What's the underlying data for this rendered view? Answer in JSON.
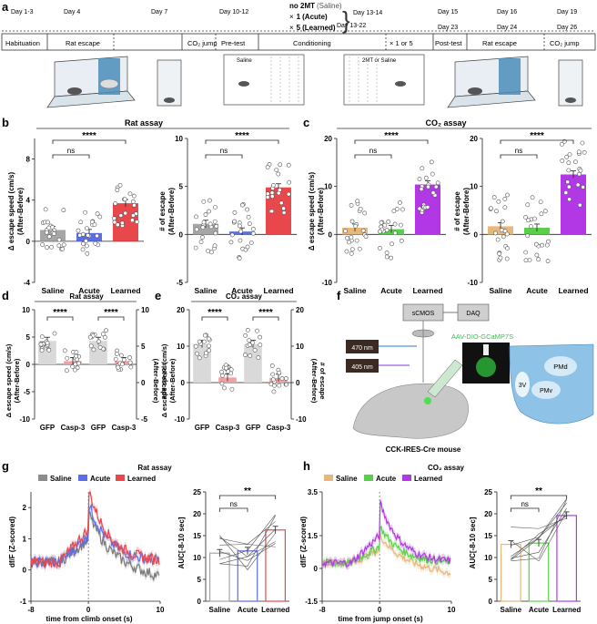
{
  "panel_letters": {
    "a": "a",
    "b": "b",
    "c": "c",
    "d": "d",
    "e": "e",
    "f": "f",
    "g": "g",
    "h": "h"
  },
  "timeline": {
    "days": [
      "Day 1-3",
      "Day 4",
      "Day 7",
      "Day 10-12",
      "Day 13-14",
      "Day 13-22",
      "Day 15",
      "Day 16",
      "Day 19",
      "Day 23",
      "Day 24",
      "Day 26"
    ],
    "groups": {
      "g0": "no 2MT",
      "g0s": "(Saline)",
      "g1x": "×",
      "g1": "1",
      "g1s": "(Acute)",
      "g2x": "×",
      "g2": "5",
      "g2s": "(Learned)"
    },
    "stages": [
      "Habituation",
      "Rat escape",
      "CO₂ jump",
      "Pre-test",
      "Conditioning",
      "× 1 or 5",
      "Post-test",
      "Rat escape",
      "CO₂ jump"
    ],
    "box_labels": {
      "left": "Saline",
      "right": "2MT or Saline"
    }
  },
  "common": {
    "assay_rat": "Rat assay",
    "assay_co2": "CO₂ assay",
    "ns": "ns",
    "sig4": "****",
    "sig2": "**",
    "xcat": [
      "Saline",
      "Acute",
      "Learned"
    ],
    "xcat_gc": [
      "GFP",
      "Casp-3",
      "GFP",
      "Casp-3"
    ],
    "ylab_speed": "Δ escape speed (cm/s)",
    "ylab_speed2": "(After-Before)",
    "ylab_num": "# of escape",
    "ylab_num2": "(After-Before)"
  },
  "panel_f": {
    "scmos": "sCMOS",
    "daq": "DAQ",
    "l470": "470 nm",
    "l405": "405 nm",
    "virus": "AAV-DIO-GCaMP7S",
    "mouse": "CCK-IRES-Cre mouse",
    "pmd": "PMd",
    "v3": "3V",
    "pmv": "PMv"
  },
  "panel_g": {
    "legend": [
      "Saline",
      "Acute",
      "Learned"
    ],
    "ylabel": "df/F (Z-scored)",
    "xlabel": "time from climb onset (s)",
    "auc_label": "AUC[-8-10 sec]"
  },
  "panel_h": {
    "legend": [
      "Saline",
      "Acute",
      "Learned"
    ],
    "ylabel": "df/F (Z-scored)",
    "xlabel": "time from jump onset (s)",
    "auc_label": "AUC[-8-10 sec]"
  },
  "colors": {
    "saline": "#a6a6a6",
    "acute": "#5b6ee8",
    "learned": "#e8474c",
    "saline_c": "#e8b77a",
    "acute_c": "#5ad04a",
    "learned_c": "#b238e6",
    "gfp": "#d9d9d9",
    "casp": "#f2a0a0"
  },
  "chart_data": [
    {
      "id": "b1",
      "type": "bar",
      "categories": [
        "Saline",
        "Acute",
        "Learned"
      ],
      "values": [
        1.1,
        0.8,
        3.7
      ],
      "ylim": [
        -4,
        10
      ],
      "yticks": [
        -4,
        0,
        4,
        8
      ],
      "ylabel": "Δ escape speed (cm/s) (After-Before)",
      "title": "Rat assay"
    },
    {
      "id": "b2",
      "type": "bar",
      "categories": [
        "Saline",
        "Acute",
        "Learned"
      ],
      "values": [
        1.1,
        0.3,
        4.9
      ],
      "ylim": [
        -5,
        10
      ],
      "yticks": [
        -5,
        0,
        5,
        10
      ],
      "ylabel": "# of escape (After-Before)"
    },
    {
      "id": "c1",
      "type": "bar",
      "categories": [
        "Saline",
        "Acute",
        "Learned"
      ],
      "values": [
        1.4,
        1.1,
        10.4
      ],
      "ylim": [
        -10,
        20
      ],
      "yticks": [
        -10,
        0,
        10,
        20
      ],
      "ylabel": "Δ escape speed (cm/s) (After-Before)",
      "title": "CO₂ assay"
    },
    {
      "id": "c2",
      "type": "bar",
      "categories": [
        "Saline",
        "Acute",
        "Learned"
      ],
      "values": [
        1.7,
        1.4,
        12.5
      ],
      "ylim": [
        -10,
        20
      ],
      "yticks": [
        -10,
        0,
        10,
        20
      ],
      "ylabel": "# of escape (After-Before)"
    },
    {
      "id": "d",
      "type": "bar",
      "categories": [
        "GFP",
        "Casp-3",
        "GFP",
        "Casp-3"
      ],
      "values": [
        4.3,
        0.6,
        4.3,
        0.6
      ],
      "ylim": [
        -10,
        10
      ],
      "yticks": [
        -10,
        -5,
        0,
        5,
        10
      ],
      "y2ticks": [
        -5,
        0,
        5,
        10
      ],
      "ylabel": "Δ escape speed (cm/s) (After-Before)",
      "y2label": "# of escape (After-Before)",
      "title": "Rat assay"
    },
    {
      "id": "e",
      "type": "bar",
      "categories": [
        "GFP",
        "Casp-3",
        "GFP",
        "Casp-3"
      ],
      "values": [
        10.6,
        1.4,
        10.6,
        1.3
      ],
      "ylim": [
        -10,
        20
      ],
      "yticks": [
        -10,
        0,
        10,
        20
      ],
      "y2ticks": [
        -10,
        0,
        10,
        20
      ],
      "ylabel": "Δ escape speed (cm/s) (After-Before)",
      "y2label": "# of escape (After-Before)",
      "title": "CO₂ assay"
    },
    {
      "id": "g1",
      "type": "line",
      "x_range": [
        -8,
        10
      ],
      "xticks": [
        -8,
        0,
        10
      ],
      "ylim": [
        -1,
        2.5
      ],
      "yticks": [
        -1,
        0,
        1,
        2
      ],
      "series": [
        {
          "name": "Saline",
          "peak": 1.6
        },
        {
          "name": "Acute",
          "peak": 1.9
        },
        {
          "name": "Learned",
          "peak": 2.35
        }
      ]
    },
    {
      "id": "g2",
      "type": "bar",
      "categories": [
        "Saline",
        "Acute",
        "Learned"
      ],
      "values": [
        11,
        11.5,
        16.3
      ],
      "ylim": [
        0,
        25
      ],
      "yticks": [
        0,
        5,
        10,
        15,
        20,
        25
      ]
    },
    {
      "id": "h1",
      "type": "line",
      "x_range": [
        -8,
        10
      ],
      "xticks": [
        -8,
        0,
        10
      ],
      "ylim": [
        -1.5,
        3.5
      ],
      "yticks": [
        -1.5,
        0,
        1.5,
        3.5
      ],
      "series": [
        {
          "name": "Saline",
          "peak": 1.3
        },
        {
          "name": "Acute",
          "peak": 1.7
        },
        {
          "name": "Learned",
          "peak": 2.8
        }
      ]
    },
    {
      "id": "h2",
      "type": "bar",
      "categories": [
        "Saline",
        "Acute",
        "Learned"
      ],
      "values": [
        13,
        13.3,
        19.6
      ],
      "ylim": [
        0,
        25
      ],
      "yticks": [
        0,
        5,
        10,
        15,
        20,
        25
      ]
    }
  ]
}
